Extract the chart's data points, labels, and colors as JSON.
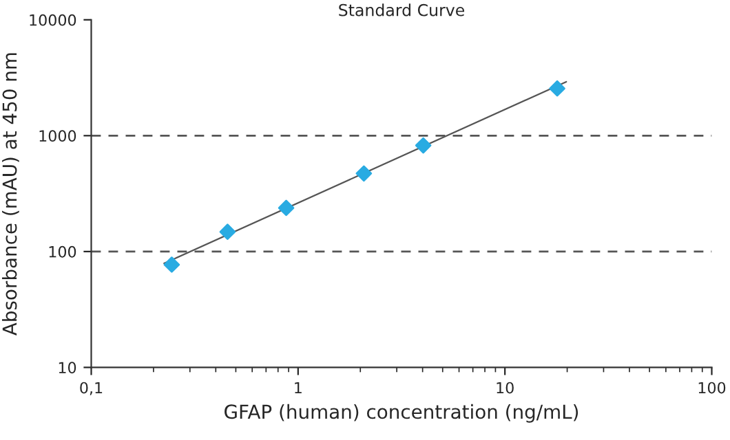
{
  "chart_data": {
    "type": "scatter",
    "title": "Standard Curve",
    "xlabel": "GFAP (human) concentration (ng/mL)",
    "ylabel": "Absorbance (mAU) at 450 nm",
    "log": "xy",
    "xlim": [
      0.1,
      100
    ],
    "ylim": [
      10,
      10000
    ],
    "xticks": [
      {
        "value": 0.1,
        "label": "0,1"
      },
      1,
      10,
      100
    ],
    "yticks": [
      10,
      100,
      1000,
      10000
    ],
    "marker": "diamond",
    "series": [
      {
        "color": "#29abe2",
        "x": [
          0.245,
          0.456,
          0.876,
          2.08,
          4.03,
          17.9
        ],
        "values": [
          77,
          148,
          238,
          472,
          823,
          2553
        ]
      },
      {
        "type": "line",
        "color": "#555555",
        "marker": "none",
        "x": [
          0.225,
          19.8
        ],
        "values": [
          79,
          2917
        ]
      }
    ],
    "ref_lines": [
      {
        "axis": "y",
        "value": 100,
        "color": "#555555",
        "line_style": "dashed"
      },
      {
        "axis": "y",
        "value": 1000,
        "color": "#555555",
        "line_style": "dashed"
      }
    ]
  }
}
